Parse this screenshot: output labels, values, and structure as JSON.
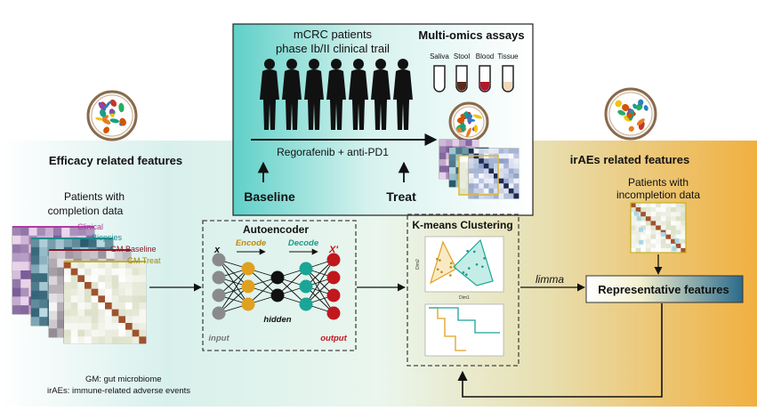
{
  "trial": {
    "title_line1": "mCRC patients",
    "title_line2": "phase Ib/II clinical trail",
    "assays_title": "Multi-omics assays",
    "sample_types": [
      "Saliva",
      "Stool",
      "Blood",
      "Tissue"
    ],
    "treatment": "Regorafenib + anti-PD1",
    "baseline": "Baseline",
    "treat": "Treat"
  },
  "left": {
    "section_title": "Efficacy related features",
    "patients_line1": "Patients  with",
    "patients_line2": "completion data",
    "layers": [
      "Clinical",
      "Biopsies",
      "GM Baseline",
      "GM Treat"
    ],
    "legend_gm": "GM: gut microbiome",
    "legend_irae": "irAEs: immune-related adverse events"
  },
  "right": {
    "section_title": "irAEs related features",
    "patients_line1": "Patients  with",
    "patients_line2": "incompletion data",
    "representative": "Representative features",
    "limma": "limma"
  },
  "autoencoder": {
    "title": "Autoencoder",
    "x_label": "x",
    "x_prime_label": "X'",
    "encode": "Encode",
    "decode": "Decode",
    "hidden": "hidden",
    "input": "input",
    "output": "output"
  },
  "kmeans": {
    "title": "K-means Clustering",
    "axis_x": "Dim1",
    "axis_y": "Dim2"
  },
  "colors": {
    "teal_gradient_start": "#5fd0c8",
    "orange_gradient_end": "#f0b040",
    "input_node": "#8a8a8a",
    "encode_node": "#e0a020",
    "hidden_node": "#111111",
    "decode_node": "#1aa597",
    "output_node": "#c0181e",
    "encode_text": "#c08a10",
    "decode_text": "#1a9a8a",
    "output_text": "#c0181e",
    "clinical_label": "#b03aa0",
    "biopsies_label": "#1a8a8a",
    "gm_baseline_label": "#8a1a2a",
    "gm_treat_label": "#9a8a10"
  }
}
